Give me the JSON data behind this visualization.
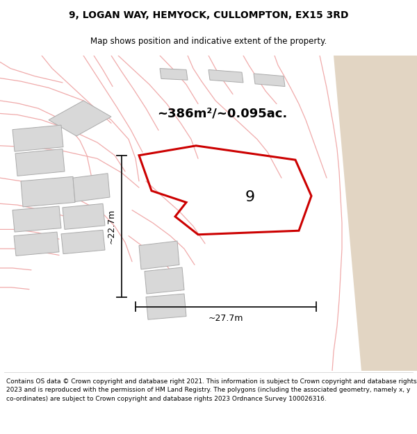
{
  "title": "9, LOGAN WAY, HEMYOCK, CULLOMPTON, EX15 3RD",
  "subtitle": "Map shows position and indicative extent of the property.",
  "footer": "Contains OS data © Crown copyright and database right 2021. This information is subject to Crown copyright and database rights 2023 and is reproduced with the permission of HM Land Registry. The polygons (including the associated geometry, namely x, y co-ordinates) are subject to Crown copyright and database rights 2023 Ordnance Survey 100026316.",
  "area_label": "~386m²/~0.095ac.",
  "number_label": "9",
  "dim_horizontal": "~27.7m",
  "dim_vertical": "~22.7m",
  "map_bg": "#f0eeee",
  "tan_color": "#e2d5c3",
  "main_plot_color": "#cc0000",
  "main_plot_linewidth": 2.2,
  "building_fill": "#d8d8d8",
  "building_edge": "#aaaaaa",
  "parcel_line_color": "#f0aaaa",
  "parcel_line_color2": "#c8c8c8",
  "dim_line_color": "#111111",
  "figsize": [
    6.0,
    6.25
  ],
  "dpi": 100,
  "title_fontsize": 10,
  "subtitle_fontsize": 8.5,
  "footer_fontsize": 6.5,
  "area_fontsize": 13,
  "number_fontsize": 16,
  "dim_fontsize": 9
}
